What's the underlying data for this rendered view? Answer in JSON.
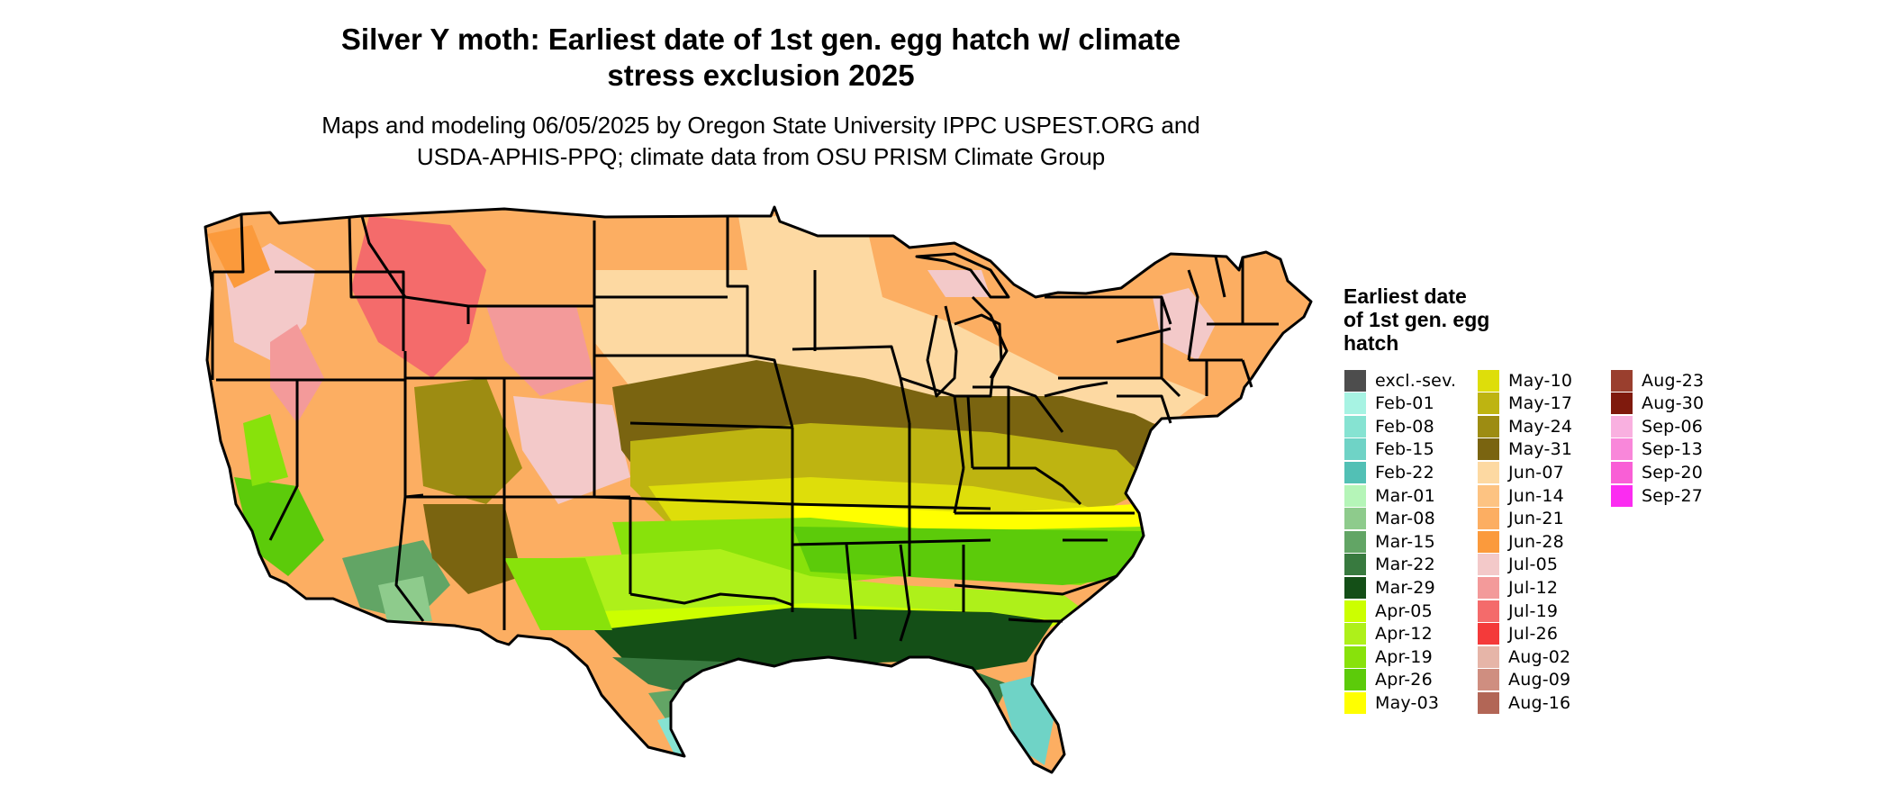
{
  "title": {
    "line1": "Silver Y moth: Earliest date of 1st gen. egg hatch w/ climate",
    "line2": "stress exclusion 2025"
  },
  "subtitle": {
    "line1": "Maps and modeling 06/05/2025 by Oregon State University IPPC USPEST.ORG and",
    "line2": "USDA-APHIS-PPQ; climate data from OSU PRISM Climate Group"
  },
  "legend": {
    "title_lines": [
      "Earliest date",
      "of 1st gen. egg",
      "hatch"
    ],
    "items": [
      {
        "label": "excl.-sev.",
        "color": "#4d4d4d"
      },
      {
        "label": "Feb-01",
        "color": "#a7f3e3"
      },
      {
        "label": "Feb-08",
        "color": "#86e3d2"
      },
      {
        "label": "Feb-15",
        "color": "#6fd3c6"
      },
      {
        "label": "Feb-22",
        "color": "#52c0b5"
      },
      {
        "label": "Mar-01",
        "color": "#b5f5b8"
      },
      {
        "label": "Mar-08",
        "color": "#8ecb8c"
      },
      {
        "label": "Mar-15",
        "color": "#62a565"
      },
      {
        "label": "Mar-22",
        "color": "#387a3f"
      },
      {
        "label": "Mar-29",
        "color": "#144f17"
      },
      {
        "label": "Apr-05",
        "color": "#ccff00"
      },
      {
        "label": "Apr-12",
        "color": "#aef01a"
      },
      {
        "label": "Apr-19",
        "color": "#88e20b"
      },
      {
        "label": "Apr-26",
        "color": "#5ccb0a"
      },
      {
        "label": "May-03",
        "color": "#ffff00"
      },
      {
        "label": "May-10",
        "color": "#dede0a"
      },
      {
        "label": "May-17",
        "color": "#beb411"
      },
      {
        "label": "May-24",
        "color": "#9d8c12"
      },
      {
        "label": "May-31",
        "color": "#7a6410"
      },
      {
        "label": "Jun-07",
        "color": "#fdd9a2"
      },
      {
        "label": "Jun-14",
        "color": "#fdc382"
      },
      {
        "label": "Jun-21",
        "color": "#fcae62"
      },
      {
        "label": "Jun-28",
        "color": "#fb9a3c"
      },
      {
        "label": "Jul-05",
        "color": "#f3c9c9"
      },
      {
        "label": "Jul-12",
        "color": "#f39a9a"
      },
      {
        "label": "Jul-19",
        "color": "#f46b6b"
      },
      {
        "label": "Jul-26",
        "color": "#f43a3a"
      },
      {
        "label": "Aug-02",
        "color": "#e6b5a8"
      },
      {
        "label": "Aug-09",
        "color": "#cf8e80"
      },
      {
        "label": "Aug-16",
        "color": "#b26656"
      },
      {
        "label": "Aug-23",
        "color": "#9a3f2e"
      },
      {
        "label": "Aug-30",
        "color": "#7f1a0d"
      },
      {
        "label": "Sep-06",
        "color": "#f9b0e0"
      },
      {
        "label": "Sep-13",
        "color": "#f987da"
      },
      {
        "label": "Sep-20",
        "color": "#f95fd6"
      },
      {
        "label": "Sep-27",
        "color": "#fb2cf1"
      }
    ]
  },
  "colors": {
    "state_border": "#000000",
    "no_data": "#ffffff"
  }
}
